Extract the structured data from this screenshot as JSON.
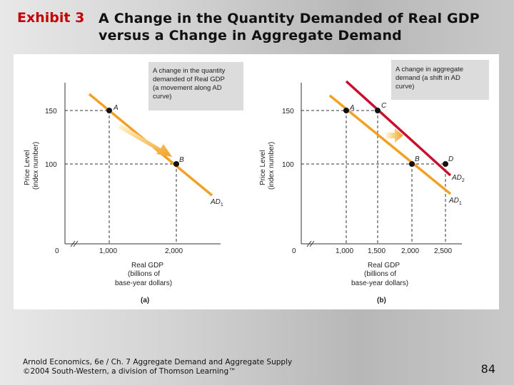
{
  "slide": {
    "exhibit_label": "Exhibit 3",
    "title_line1": "A Change in the Quantity Demanded of Real GDP",
    "title_line2": "versus a Change in Aggregate Demand",
    "footer_line1": "Arnold Economics, 6e / Ch. 7 Aggregate Demand and Aggregate Supply",
    "footer_line2": "©2004 South-Western, a division of Thomson Learning™",
    "page_number": "84"
  },
  "colors": {
    "orange": "#f2a126",
    "red": "#c8102e",
    "note_bg": "#dcdcdc"
  },
  "chart_data": [
    {
      "type": "line",
      "panel_label": "(a)",
      "ylabel_1": "Price Level",
      "ylabel_2": "(index number)",
      "xlabel_1": "Real GDP",
      "xlabel_2": "(billions of",
      "xlabel_3": "base-year dollars)",
      "x_ticks": [
        "1,000",
        "2,000"
      ],
      "y_ticks": [
        "150",
        "100"
      ],
      "origin_label": "0",
      "series": [
        {
          "name": "AD1",
          "label_main": "AD",
          "label_sub": "1"
        }
      ],
      "points": [
        {
          "label": "A",
          "x": 1000,
          "y": 150
        },
        {
          "label": "B",
          "x": 2000,
          "y": 100
        }
      ],
      "note_lines": [
        "A change in the quantity",
        "demanded of Real GDP",
        "(a movement along AD",
        "curve)"
      ]
    },
    {
      "type": "line",
      "panel_label": "(b)",
      "ylabel_1": "Price Level",
      "ylabel_2": "(index number)",
      "xlabel_1": "Real GDP",
      "xlabel_2": "(billions of",
      "xlabel_3": "base-year dollars)",
      "x_ticks": [
        "1,000",
        "1,500",
        "2,000",
        "2,500"
      ],
      "y_ticks": [
        "150",
        "100"
      ],
      "origin_label": "0",
      "series": [
        {
          "name": "AD1",
          "label_main": "AD",
          "label_sub": "1"
        },
        {
          "name": "AD2",
          "label_main": "AD",
          "label_sub": "2"
        }
      ],
      "points": [
        {
          "label": "A",
          "x": 1000,
          "y": 150
        },
        {
          "label": "C",
          "x": 1500,
          "y": 150
        },
        {
          "label": "B",
          "x": 2000,
          "y": 100
        },
        {
          "label": "D",
          "x": 2500,
          "y": 100
        }
      ],
      "note_lines": [
        "A change in aggregate",
        "demand (a shift in AD",
        "curve)"
      ]
    }
  ]
}
